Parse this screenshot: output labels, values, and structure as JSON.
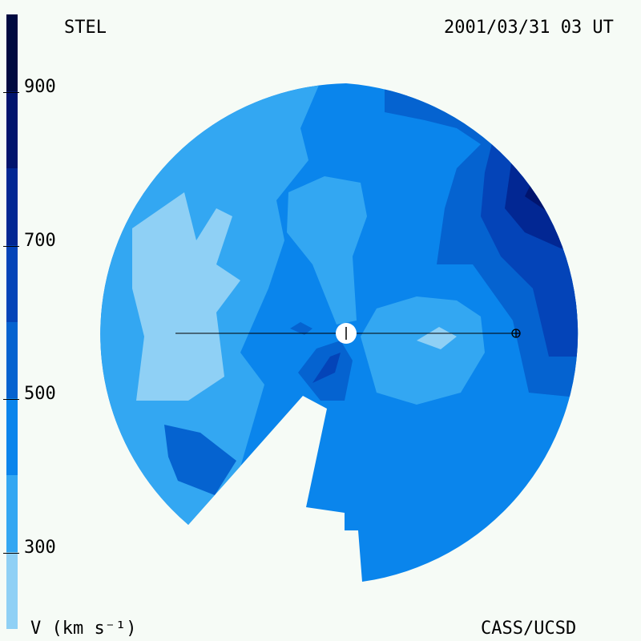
{
  "header": {
    "left_label": "STEL",
    "right_label": "2001/03/31 03 UT"
  },
  "footer": {
    "left_label": "V (km s⁻¹)",
    "right_label": "CASS/UCSD"
  },
  "colors": {
    "background": "#f6fbf6",
    "levels": [
      "#8fd0f5",
      "#33a7f2",
      "#0a85ec",
      "#0563d0",
      "#0444b8",
      "#022793",
      "#01146d",
      "#000a40",
      "#000526"
    ]
  },
  "chart_data": {
    "type": "heatmap",
    "title": "",
    "colorbar": {
      "label": "V (km s⁻¹)",
      "range": [
        200,
        1000
      ],
      "ticks": [
        300,
        500,
        700,
        900
      ],
      "tick_labels": [
        "300",
        "500",
        "700",
        "900"
      ],
      "levels": [
        200,
        300,
        400,
        500,
        600,
        700,
        800,
        900,
        1000
      ]
    },
    "field": {
      "min_speed": 200,
      "max_speed": 850,
      "fastest_region": "upper-right",
      "slowest_regions": [
        "left",
        "right-center near Earth"
      ],
      "missing_sector": "lower-left"
    },
    "markers": {
      "sun": "center",
      "earth": "right of sun on horizontal line"
    }
  }
}
